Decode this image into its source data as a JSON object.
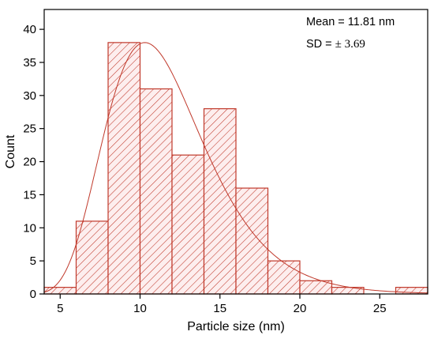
{
  "chart_data": {
    "type": "bar",
    "subtype": "histogram",
    "xlabel": "Particle size (nm)",
    "ylabel": "Count",
    "xlim": [
      4,
      28
    ],
    "ylim": [
      0,
      43
    ],
    "xticks": [
      5,
      10,
      15,
      20,
      25
    ],
    "yticks": [
      0,
      5,
      10,
      15,
      20,
      25,
      30,
      35,
      40
    ],
    "bins": [
      {
        "x0": 4,
        "x1": 6,
        "count": 1
      },
      {
        "x0": 6,
        "x1": 8,
        "count": 11
      },
      {
        "x0": 8,
        "x1": 10,
        "count": 38
      },
      {
        "x0": 10,
        "x1": 12,
        "count": 31
      },
      {
        "x0": 12,
        "x1": 14,
        "count": 21
      },
      {
        "x0": 14,
        "x1": 16,
        "count": 28
      },
      {
        "x0": 16,
        "x1": 18,
        "count": 16
      },
      {
        "x0": 18,
        "x1": 20,
        "count": 5
      },
      {
        "x0": 20,
        "x1": 22,
        "count": 2
      },
      {
        "x0": 22,
        "x1": 24,
        "count": 1
      },
      {
        "x0": 24,
        "x1": 26,
        "count": 0
      },
      {
        "x0": 26,
        "x1": 28,
        "count": 1
      }
    ],
    "fit_curve": {
      "type": "lognormal",
      "peak_x": 10.3,
      "peak_y": 38,
      "sigma": 0.3
    },
    "grid": false,
    "colors": {
      "bar_edge": "#c0392b",
      "hatch": "#c0392b",
      "fill": "#fdeeee",
      "curve": "#c0392b",
      "axis": "#000000"
    }
  },
  "annotations": {
    "mean_label": "Mean = 11.81 nm",
    "sd_prefix": "SD = ",
    "sd_value": "± 3.69"
  }
}
